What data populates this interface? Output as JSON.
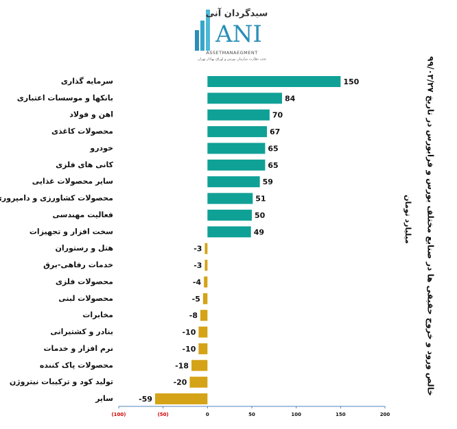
{
  "logo": {
    "brand": "سبدگردان آنی",
    "mark": "ANI",
    "tagline": "ASSETMANAEGMENT",
    "note": "تحت نظارت سازمان بورس و اوراق بهادار تهران"
  },
  "chart_data": {
    "type": "bar",
    "orientation": "horizontal",
    "title": "خالص ورود و خروج حقیقی ها در صنایع مختلف بورس و فرابورس در تاریخ ۹۹/۰۳/۲۷",
    "subtitle": "میلیارد تومان",
    "categories": [
      "سرمایه گذاری",
      "بانکها و موسسات اعتباری",
      "اهن و فولاد",
      "محصولات کاغذی",
      "خودرو",
      "کانی های فلزی",
      "سایر محصولات غذایی",
      "محصولات کشاورزی و دامپروری",
      "فعالیت مهندسی",
      "سخت افزار و تجهیزات",
      "هتل و رستوران",
      "خدمات رفاهی-برق",
      "محصولات فلزی",
      "محصولات لبنی",
      "مخابرات",
      "بنادر و کشتیرانی",
      "نرم افزار و خدمات",
      "محصولات پاک کننده",
      "تولید کود و ترکیبات نیتروژن",
      "سایر"
    ],
    "values": [
      150,
      84,
      70,
      67,
      65,
      65,
      59,
      51,
      50,
      49,
      -3,
      -3,
      -4,
      -5,
      -8,
      -10,
      -10,
      -18,
      -20,
      -59
    ],
    "color": "#0fa096",
    "negative_color": "#d4a317",
    "xlim": [
      -100,
      200
    ],
    "xticks": [
      {
        "value": -100,
        "label": "(100)"
      },
      {
        "value": -50,
        "label": "(50)"
      },
      0,
      50,
      100,
      150,
      200
    ],
    "negative_tick_color": "#d00000",
    "axis_color": "#4f81bd"
  }
}
